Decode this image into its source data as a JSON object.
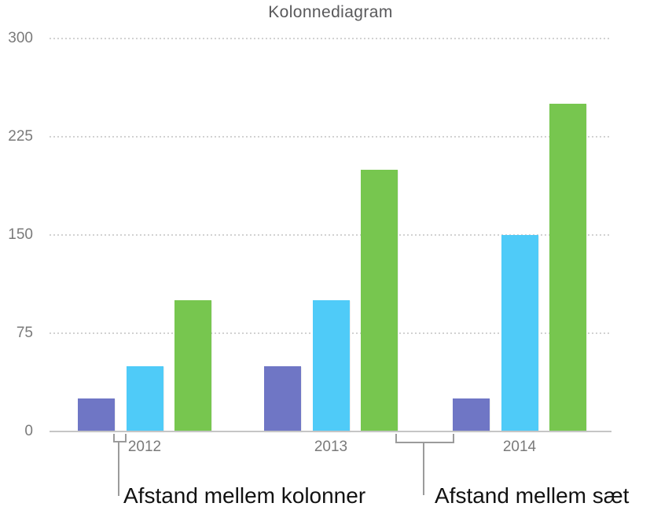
{
  "chart_data": {
    "type": "bar",
    "title": "Kolonnediagram",
    "categories": [
      "2012",
      "2013",
      "2014"
    ],
    "series": [
      {
        "name": "",
        "color": "#6f76c5",
        "values": [
          25,
          50,
          25
        ]
      },
      {
        "name": "",
        "color": "#4fcbf8",
        "values": [
          50,
          100,
          150
        ]
      },
      {
        "name": "",
        "color": "#77c64f",
        "values": [
          100,
          200,
          250
        ]
      }
    ],
    "xlabel": "",
    "ylabel": "",
    "ylim": [
      0,
      300
    ],
    "yticks": [
      0,
      75,
      150,
      225,
      300
    ],
    "grid": "horizontal-dotted",
    "legend_position": "none"
  },
  "annotations": {
    "column_gap": {
      "label": "Afstand mellem kolonner"
    },
    "set_gap": {
      "label": "Afstand mellem sæt"
    }
  },
  "colors": {
    "series1": "#6f76c5",
    "series2": "#4fcbf8",
    "series3": "#77c64f",
    "gridline": "#d2d2d2",
    "axis_line": "#c5c5c5",
    "tick_label": "#7a7a7a",
    "title": "#59595b",
    "callout_line": "#9b9b9b",
    "annotation_text": "#121212"
  }
}
